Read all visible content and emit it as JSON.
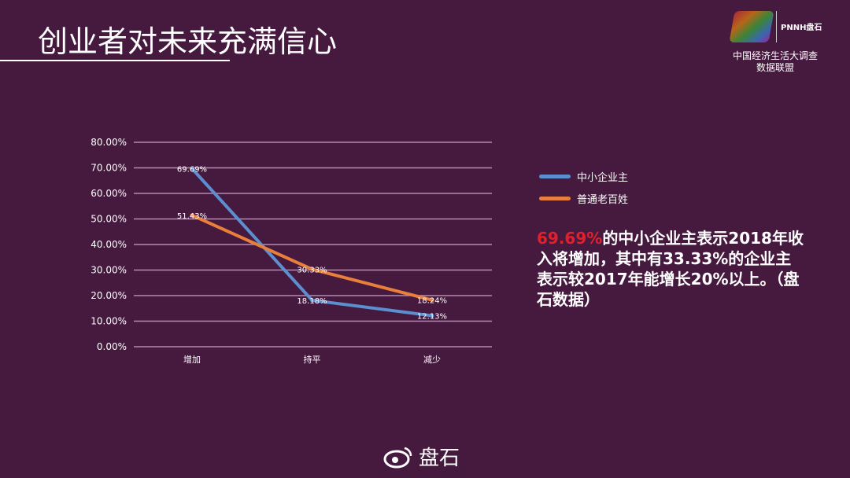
{
  "title": "创业者对未来充满信心",
  "logo": {
    "brand": "PNNH盘石",
    "line1": "中国经济生活大调查",
    "line2": "数据联盟"
  },
  "chart_data": {
    "type": "line",
    "categories": [
      "增加",
      "持平",
      "减少"
    ],
    "series": [
      {
        "name": "中小企业主",
        "color": "#5b8fd0",
        "values": [
          69.69,
          18.18,
          12.13
        ],
        "labels": [
          "69.69%",
          "18.18%",
          "12.13%"
        ]
      },
      {
        "name": "普通老百姓",
        "color": "#e8803c",
        "values": [
          51.43,
          30.33,
          18.24
        ],
        "labels": [
          "51.43%",
          "30.33%",
          "18.24%"
        ]
      }
    ],
    "ylim": [
      0,
      80
    ],
    "yticks": [
      "0.00%",
      "10.00%",
      "20.00%",
      "30.00%",
      "40.00%",
      "50.00%",
      "60.00%",
      "70.00%",
      "80.00%"
    ],
    "grid": true,
    "legend": "right"
  },
  "note": {
    "highlight": "69.69%",
    "text": "的中小企业主表示2018年收入将增加，其中有33.33%的企业主表示较2017年能增长20%以上。（盘石数据）"
  },
  "watermark": "盘石"
}
